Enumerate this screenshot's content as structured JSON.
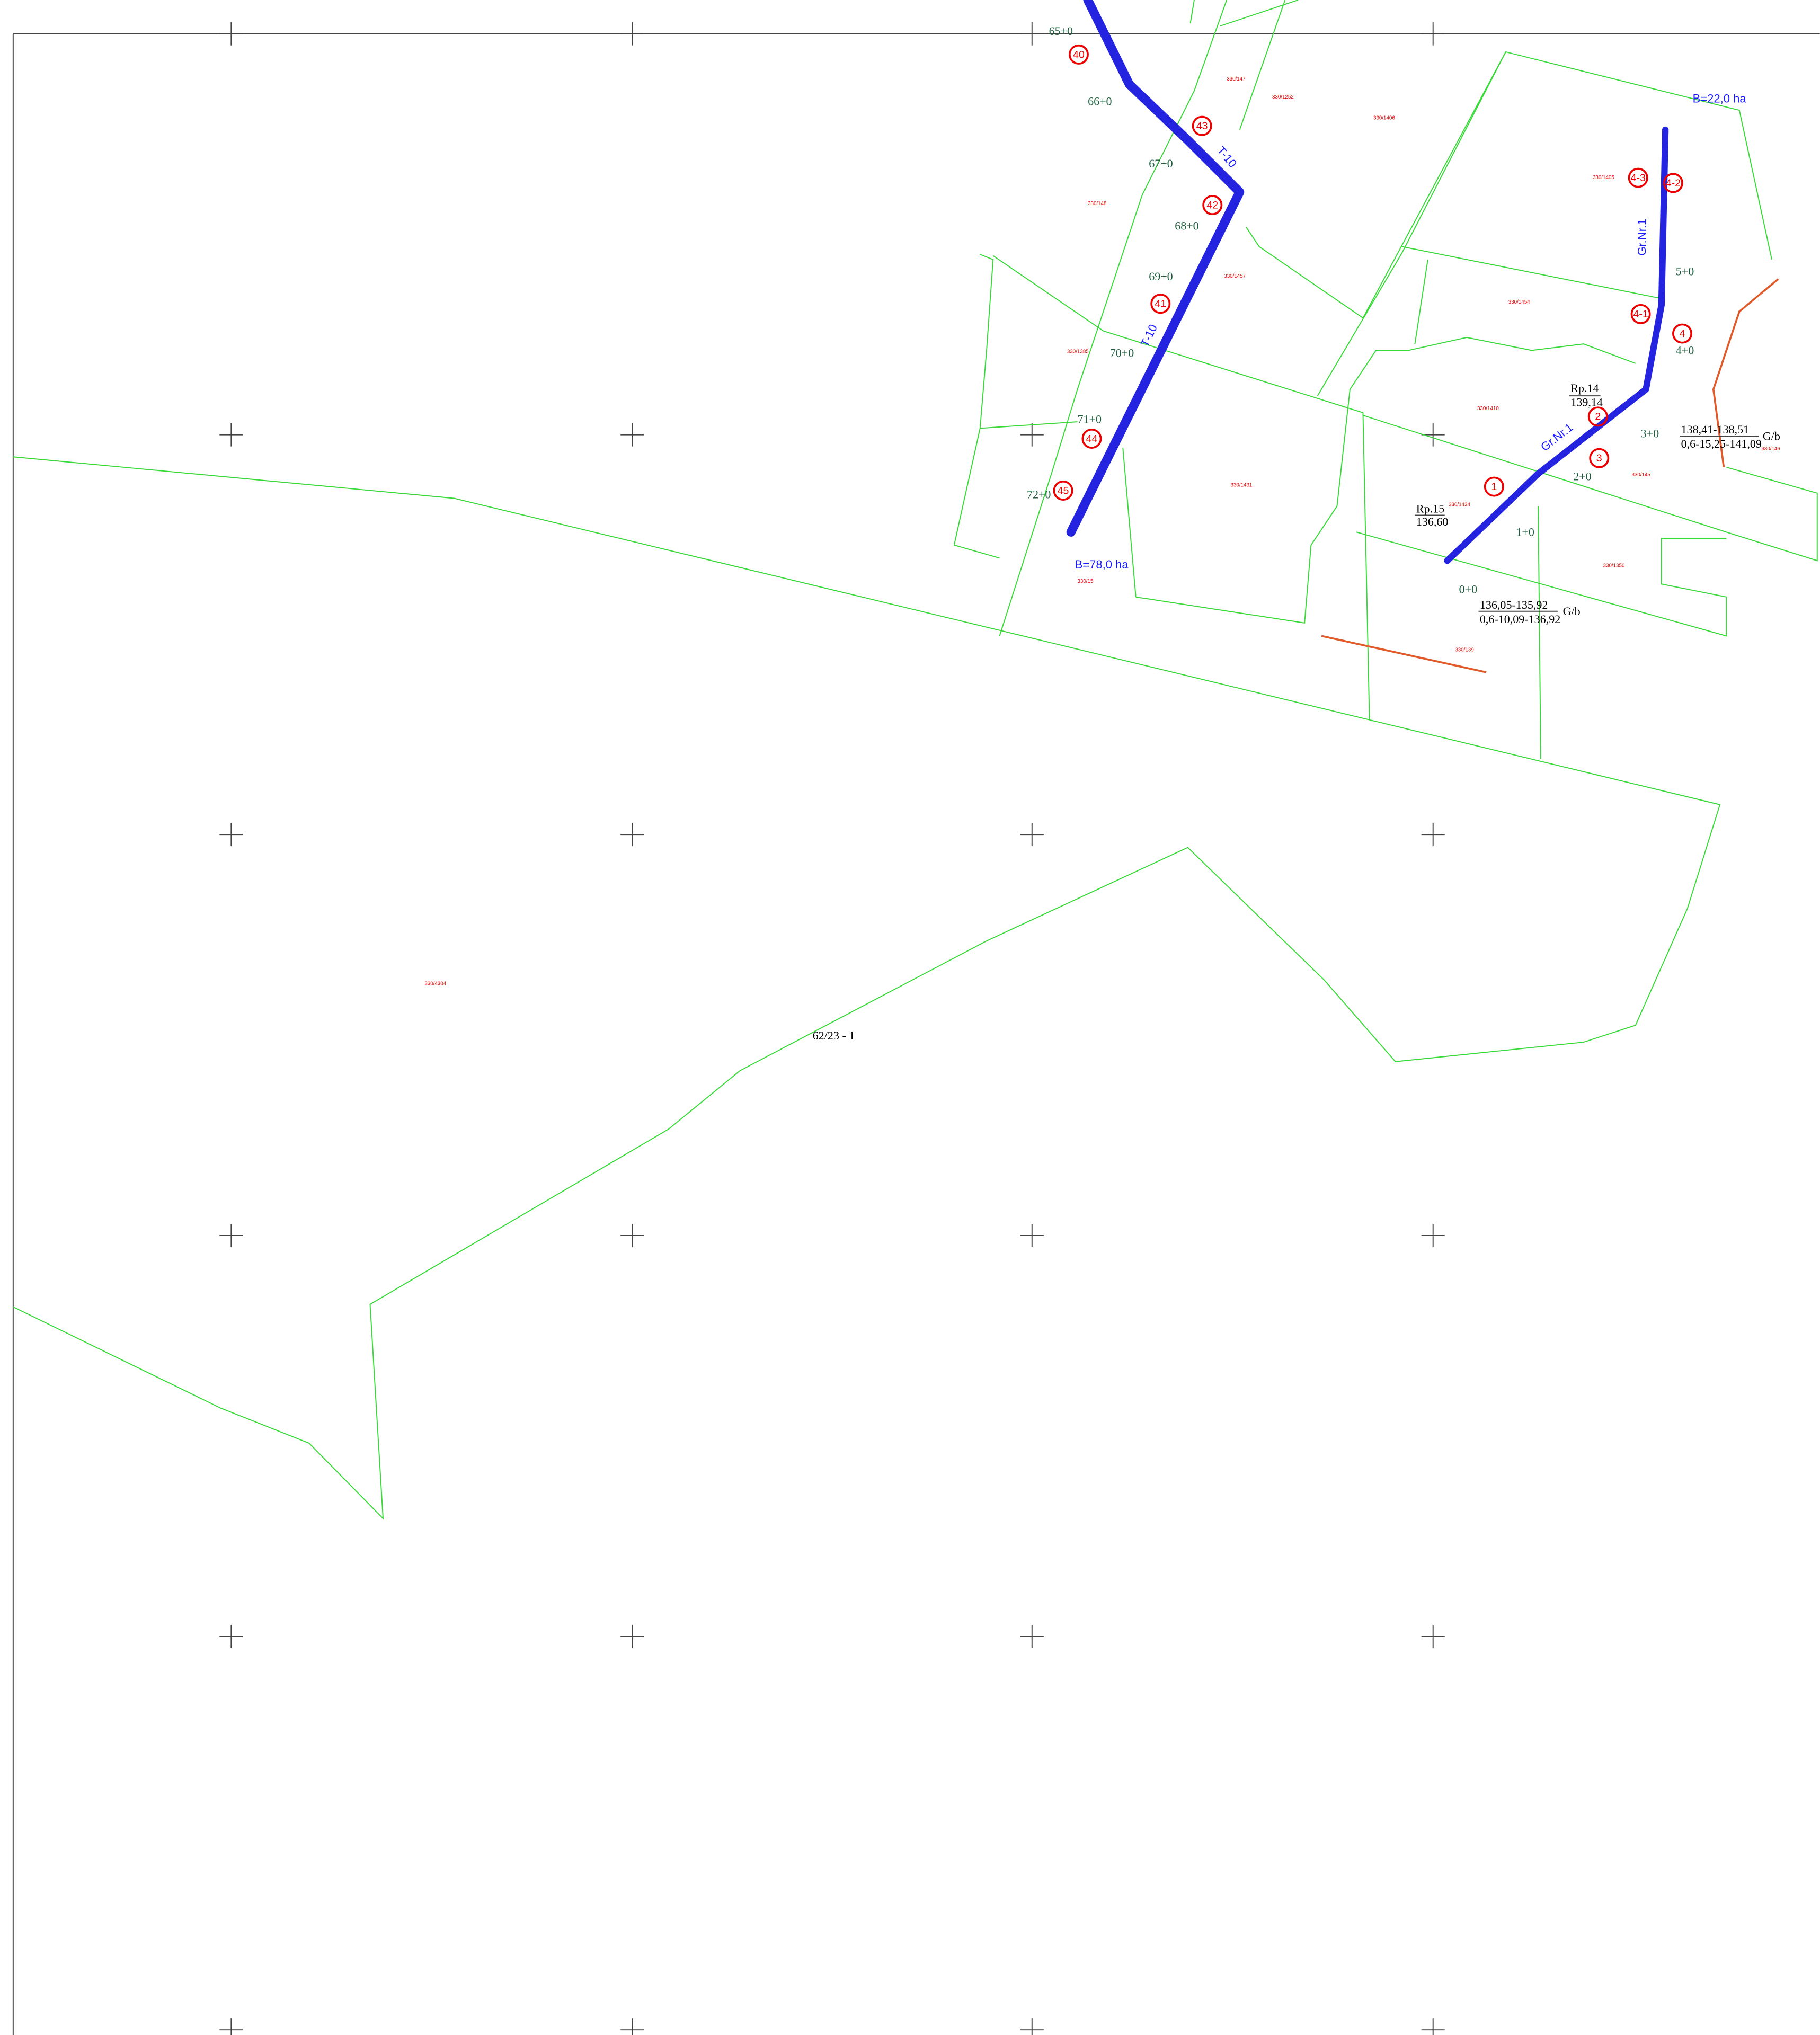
{
  "stations": [
    "65+0",
    "66+0",
    "67+0",
    "68+0",
    "69+0",
    "70+0",
    "71+0",
    "72+0",
    "0+0",
    "1+0",
    "2+0",
    "3+0",
    "4+0",
    "5+0"
  ],
  "wells": [
    "40",
    "41",
    "42",
    "43",
    "44",
    "45",
    "1",
    "2",
    "3",
    "4",
    "4-1",
    "4-2",
    "4-3"
  ],
  "annotations": {
    "area_main": "B=78,0 ha",
    "area_branch": "B=22,0 ha",
    "pipe_main_1": "T-10",
    "pipe_main_2": "T-10",
    "pipe_branch_1": "Gr.Nr.1",
    "pipe_branch_2": "Gr.Nr.1",
    "rp14": "Rp.14",
    "rp14_elev": "139,14",
    "rp15": "Rp.15",
    "rp15_elev": "136,60",
    "mouth1_top": "136,05-135,92",
    "mouth1_bottom": "0,6-10,09-136,92",
    "mouth1_type": "G/b",
    "mouth2_top": "138,41-138,51",
    "mouth2_bottom": "0,6-15,25-141,09",
    "mouth2_type": "G/b",
    "sheet": "62/23 - 1"
  },
  "parcels": [
    "330/147",
    "330/1252",
    "330/1406",
    "330/148",
    "330/1457",
    "330/1385",
    "330/1431",
    "330/1454",
    "330/1410",
    "330/1434",
    "330/145",
    "330/1350",
    "330/139",
    "330/4304",
    "330/1405",
    "330/15",
    "330/146"
  ]
}
